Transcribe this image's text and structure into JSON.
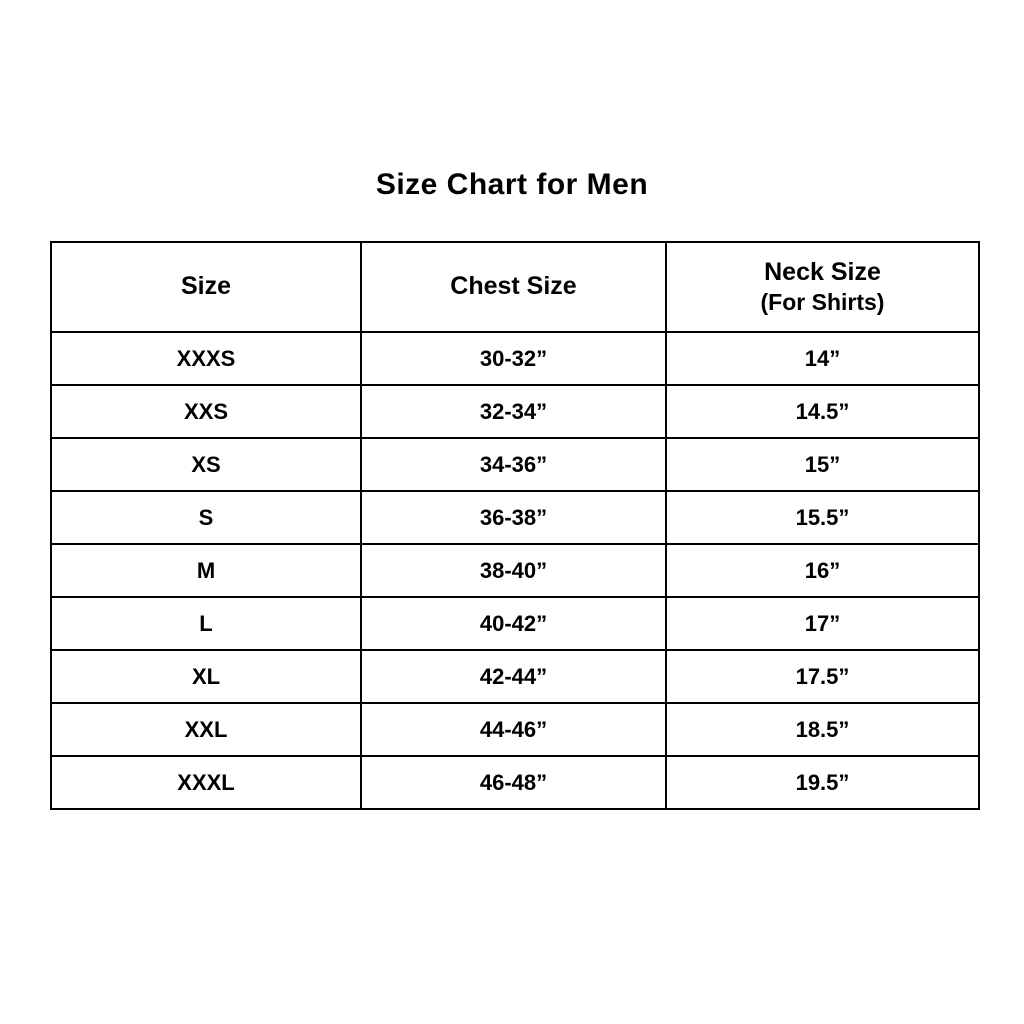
{
  "page": {
    "title": "Size Chart for Men"
  },
  "table": {
    "headers": {
      "size": "Size",
      "chest": "Chest Size",
      "neck": "Neck Size",
      "neck_sub": "(For Shirts)"
    },
    "rows": [
      {
        "size": "XXXS",
        "chest": "30-32”",
        "neck": "14”"
      },
      {
        "size": "XXS",
        "chest": "32-34”",
        "neck": "14.5”"
      },
      {
        "size": "XS",
        "chest": "34-36”",
        "neck": "15”"
      },
      {
        "size": "S",
        "chest": "36-38”",
        "neck": "15.5”"
      },
      {
        "size": "M",
        "chest": "38-40”",
        "neck": "16”"
      },
      {
        "size": "L",
        "chest": "40-42”",
        "neck": "17”"
      },
      {
        "size": "XL",
        "chest": "42-44”",
        "neck": "17.5”"
      },
      {
        "size": "XXL",
        "chest": "44-46”",
        "neck": "18.5”"
      },
      {
        "size": "XXXL",
        "chest": "46-48”",
        "neck": "19.5”"
      }
    ]
  },
  "chart_data": {
    "type": "table",
    "title": "Size Chart for Men",
    "columns": [
      "Size",
      "Chest Size",
      "Neck Size (For Shirts)"
    ],
    "rows": [
      [
        "XXXS",
        "30-32”",
        "14”"
      ],
      [
        "XXS",
        "32-34”",
        "14.5”"
      ],
      [
        "XS",
        "34-36”",
        "15”"
      ],
      [
        "S",
        "36-38”",
        "15.5”"
      ],
      [
        "M",
        "38-40”",
        "16”"
      ],
      [
        "L",
        "40-42”",
        "17”"
      ],
      [
        "XL",
        "42-44”",
        "17.5”"
      ],
      [
        "XXL",
        "44-46”",
        "18.5”"
      ],
      [
        "XXXL",
        "46-48”",
        "19.5”"
      ]
    ],
    "layout": {
      "text_color": "#000000",
      "background_color": "#ffffff",
      "border_color": "#000000",
      "grid": true
    }
  }
}
